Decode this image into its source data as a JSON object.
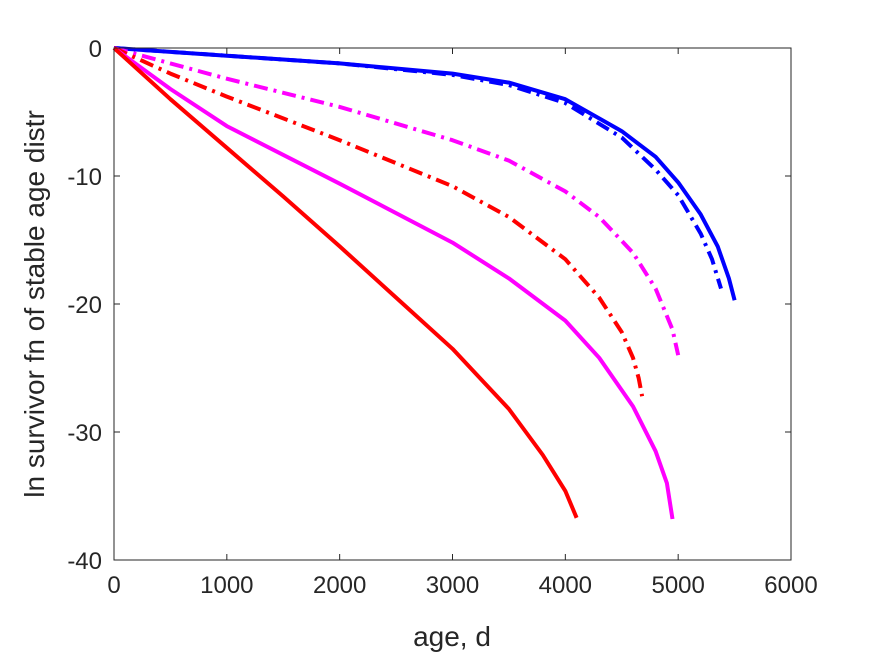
{
  "chart_data": {
    "type": "line",
    "title": "",
    "xlabel": "age, d",
    "ylabel": "ln survivor fn of stable age distr",
    "xlim": [
      0,
      6000
    ],
    "ylim": [
      -40,
      0
    ],
    "xticks": [
      0,
      1000,
      2000,
      3000,
      4000,
      5000,
      6000
    ],
    "yticks": [
      0,
      -10,
      -20,
      -30,
      -40
    ],
    "xtick_labels": [
      "0",
      "1000",
      "2000",
      "3000",
      "4000",
      "5000",
      "6000"
    ],
    "ytick_labels": [
      "0",
      "-10",
      "-20",
      "-30",
      "-40"
    ],
    "grid": false,
    "legend": "none",
    "series": [
      {
        "color": "#0000ff",
        "style": "solid",
        "x": [
          0,
          1000,
          2000,
          3000,
          3500,
          4000,
          4500,
          4800,
          5000,
          5200,
          5350,
          5450,
          5500
        ],
        "y": [
          0,
          -0.6,
          -1.2,
          -2.0,
          -2.7,
          -4.0,
          -6.5,
          -8.5,
          -10.5,
          -13.0,
          -15.5,
          -18.0,
          -19.7
        ]
      },
      {
        "color": "#0000ff",
        "style": "dashdot",
        "x": [
          0,
          1000,
          2000,
          3000,
          3500,
          4000,
          4500,
          4800,
          5000,
          5200,
          5300,
          5380
        ],
        "y": [
          0,
          -0.6,
          -1.2,
          -2.1,
          -2.9,
          -4.3,
          -7.0,
          -9.5,
          -11.5,
          -14.5,
          -16.5,
          -18.8
        ]
      },
      {
        "color": "#ff00ff",
        "style": "dashdot",
        "x": [
          0,
          500,
          1000,
          2000,
          3000,
          3500,
          4000,
          4300,
          4600,
          4800,
          4950,
          5000
        ],
        "y": [
          0,
          -1.2,
          -2.4,
          -4.6,
          -7.2,
          -8.8,
          -11.2,
          -13.2,
          -16.0,
          -18.8,
          -22.0,
          -24.0
        ]
      },
      {
        "color": "#ff0000",
        "style": "dashdot",
        "x": [
          0,
          500,
          1000,
          2000,
          3000,
          3500,
          4000,
          4300,
          4500,
          4600,
          4650,
          4680
        ],
        "y": [
          0,
          -2.0,
          -3.8,
          -7.2,
          -10.8,
          -13.2,
          -16.5,
          -19.5,
          -22.2,
          -24.2,
          -25.8,
          -27.2
        ]
      },
      {
        "color": "#ff00ff",
        "style": "solid",
        "x": [
          0,
          500,
          1000,
          2000,
          3000,
          3500,
          4000,
          4300,
          4600,
          4800,
          4900,
          4950
        ],
        "y": [
          0,
          -3.2,
          -6.1,
          -10.6,
          -15.2,
          -18.0,
          -21.3,
          -24.2,
          -28.0,
          -31.5,
          -34.0,
          -36.8
        ]
      },
      {
        "color": "#ff0000",
        "style": "solid",
        "x": [
          0,
          500,
          1000,
          1500,
          2000,
          2500,
          3000,
          3500,
          3800,
          4000,
          4100
        ],
        "y": [
          0,
          -4.0,
          -7.8,
          -11.6,
          -15.5,
          -19.5,
          -23.5,
          -28.2,
          -31.8,
          -34.6,
          -36.7
        ]
      }
    ]
  }
}
